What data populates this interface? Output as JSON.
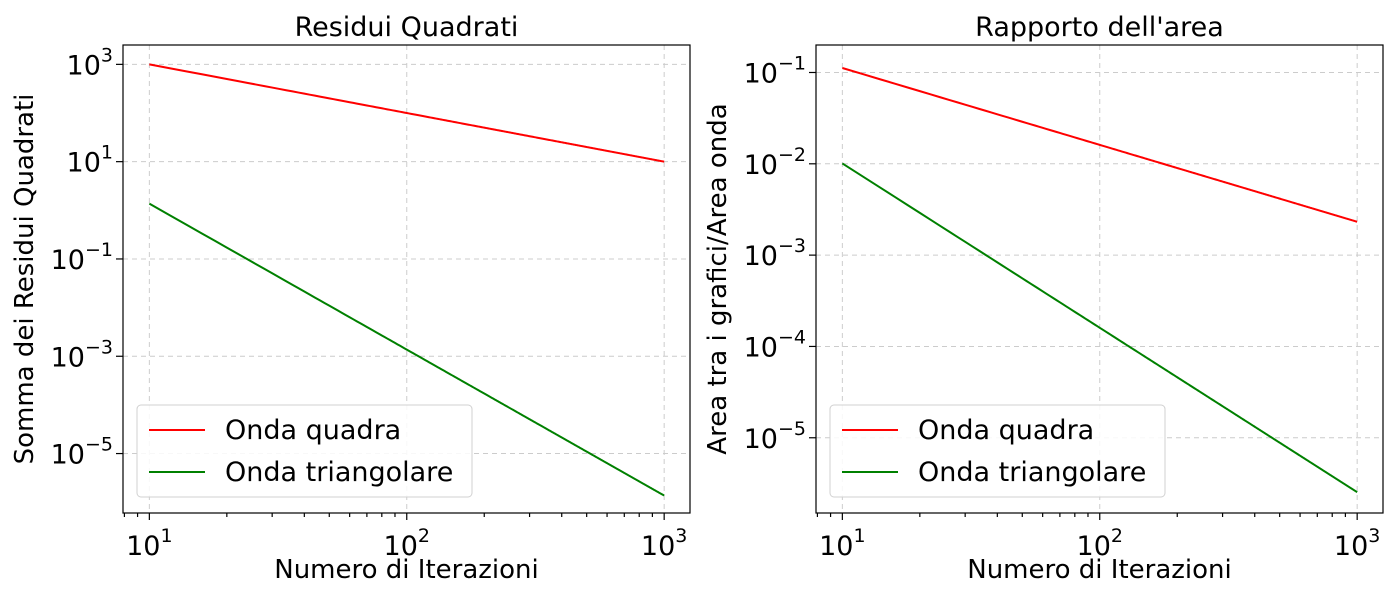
{
  "chart_data": [
    {
      "type": "line",
      "title": "Residui Quadrati",
      "xlabel": "Numero di Iterazioni",
      "ylabel": "Somma dei Residui Quadrati",
      "xscale": "log",
      "yscale": "log",
      "xlim": [
        7.9,
        1260
      ],
      "ylim": [
        6e-07,
        2500.0
      ],
      "xticks": [
        10,
        100,
        1000
      ],
      "xtick_labels": [
        {
          "base": "10",
          "exp": "1"
        },
        {
          "base": "10",
          "exp": "2"
        },
        {
          "base": "10",
          "exp": "3"
        }
      ],
      "yticks": [
        1e-05,
        0.001,
        0.1,
        10.0,
        1000.0
      ],
      "ytick_labels": [
        {
          "base": "10",
          "exp": "−5"
        },
        {
          "base": "10",
          "exp": "−3"
        },
        {
          "base": "10",
          "exp": "−1"
        },
        {
          "base": "10",
          "exp": "1"
        },
        {
          "base": "10",
          "exp": "3"
        }
      ],
      "grid": true,
      "legend": "lower-left",
      "series": [
        {
          "name": "Onda quadra",
          "color": "#ff0000",
          "n_start": 10,
          "n_end": 1000,
          "y_start": 1000,
          "y_end": 10,
          "power": 1,
          "step": 2
        },
        {
          "name": "Onda triangolare",
          "color": "#008000",
          "n_start": 10,
          "n_end": 1000,
          "y_start": 1.37,
          "y_end": 1.37e-06,
          "power": 3,
          "step": 2
        }
      ]
    },
    {
      "type": "line",
      "title": "Rapporto dell'area",
      "xlabel": "Numero di Iterazioni",
      "ylabel": "Area tra i grafici/Area onda",
      "xscale": "log",
      "yscale": "log",
      "xlim": [
        7.9,
        1260
      ],
      "ylim": [
        1.5e-06,
        0.2
      ],
      "xticks": [
        10,
        100,
        1000
      ],
      "xtick_labels": [
        {
          "base": "10",
          "exp": "1"
        },
        {
          "base": "10",
          "exp": "2"
        },
        {
          "base": "10",
          "exp": "3"
        }
      ],
      "yticks": [
        1e-05,
        0.0001,
        0.001,
        0.01,
        0.1
      ],
      "ytick_labels": [
        {
          "base": "10",
          "exp": "−5"
        },
        {
          "base": "10",
          "exp": "−4"
        },
        {
          "base": "10",
          "exp": "−3"
        },
        {
          "base": "10",
          "exp": "−2"
        },
        {
          "base": "10",
          "exp": "−1"
        }
      ],
      "grid": true,
      "legend": "lower-left",
      "series": [
        {
          "name": "Onda quadra",
          "color": "#ff0000",
          "n_start": 10,
          "n_end": 1000,
          "y_start": 0.112,
          "y_end": 0.00232,
          "power": 0.842,
          "step": 2
        },
        {
          "name": "Onda triangolare",
          "color": "#008000",
          "n_start": 10,
          "n_end": 1000,
          "y_start": 0.0101,
          "y_end": 2.55e-06,
          "power": 1.8,
          "step": 2
        }
      ]
    }
  ]
}
